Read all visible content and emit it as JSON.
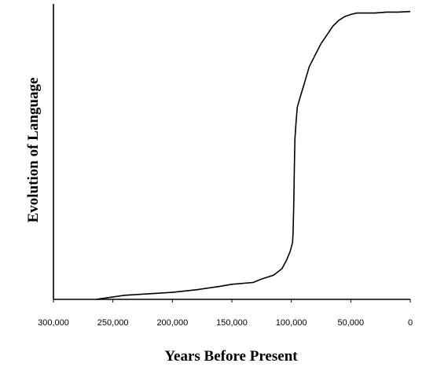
{
  "chart_data": {
    "type": "line",
    "title": "",
    "xlabel": "Years Before Present",
    "ylabel": "Evolution of Language",
    "x_reversed": true,
    "xlim": [
      300000,
      0
    ],
    "ylim": [
      0,
      1
    ],
    "grid": false,
    "y_ticks_shown": false,
    "x_ticks": [
      {
        "value": 300000,
        "label": "300,000"
      },
      {
        "value": 250000,
        "label": "250,000"
      },
      {
        "value": 200000,
        "label": "200,000"
      },
      {
        "value": 150000,
        "label": "150,000"
      },
      {
        "value": 100000,
        "label": "100,000"
      },
      {
        "value": 50000,
        "label": "50,000"
      },
      {
        "value": 0,
        "label": "0"
      }
    ],
    "series": [
      {
        "color": "#000000",
        "x": [
          264000,
          240000,
          200000,
          180000,
          160000,
          150000,
          132000,
          125000,
          115000,
          108000,
          104000,
          101000,
          99000,
          98500,
          98000,
          97500,
          97000,
          96000,
          95000,
          93000,
          90000,
          85000,
          80000,
          75000,
          70000,
          65000,
          60000,
          55000,
          50000,
          45000,
          40000,
          30000,
          20000,
          10000,
          0
        ],
        "y": [
          0.0,
          0.014,
          0.024,
          0.033,
          0.045,
          0.052,
          0.058,
          0.07,
          0.083,
          0.105,
          0.135,
          0.165,
          0.195,
          0.23,
          0.32,
          0.45,
          0.55,
          0.61,
          0.66,
          0.69,
          0.73,
          0.8,
          0.84,
          0.88,
          0.91,
          0.94,
          0.96,
          0.973,
          0.98,
          0.985,
          0.985,
          0.985,
          0.988,
          0.988,
          0.99
        ]
      }
    ]
  }
}
